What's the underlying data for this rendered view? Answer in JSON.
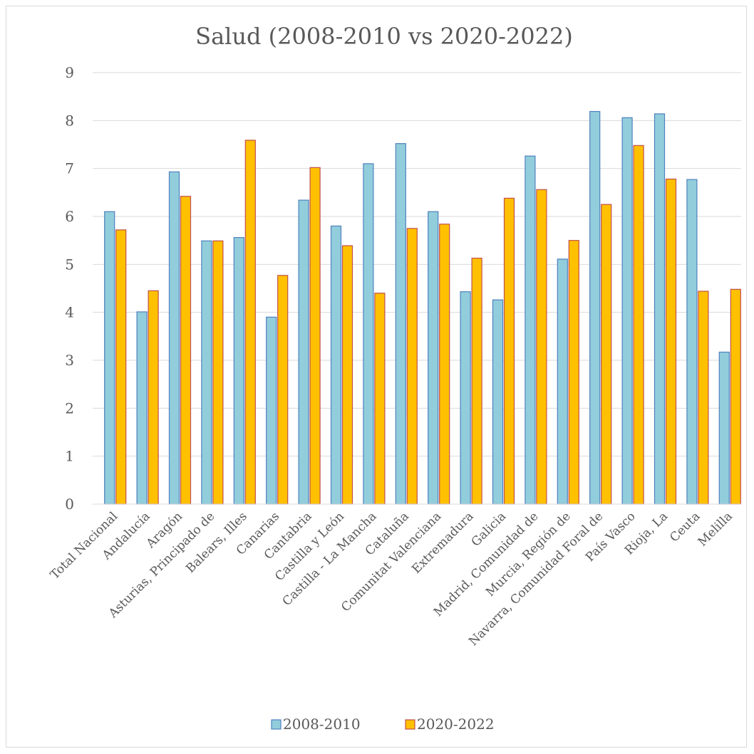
{
  "chart_data": {
    "type": "bar",
    "title": "Salud (2008-2010 vs 2020-2022)",
    "xlabel": "",
    "ylabel": "",
    "ylim": [
      0,
      9
    ],
    "yticks": [
      "0",
      "1",
      "2",
      "3",
      "4",
      "5",
      "6",
      "7",
      "8",
      "9"
    ],
    "grid": true,
    "legend_position": "bottom",
    "categories": [
      "Total Nacional",
      "Andalucía",
      "Aragón",
      "Asturias, Principado de",
      "Balears, Illes",
      "Canarias",
      "Cantabria",
      "Castilla y León",
      "Castilla - La Mancha",
      "Cataluña",
      "Comunitat Valenciana",
      "Extremadura",
      "Galicia",
      "Madrid, Comunidad de",
      "Murcia, Región de",
      "Navarra, Comunidad Foral de",
      "País Vasco",
      "Rioja, La",
      "Ceuta",
      "Melilla"
    ],
    "series": [
      {
        "name": "2008-2010",
        "color": "#92cddc",
        "stroke": "#4f81bd",
        "values": [
          6.1,
          4.01,
          6.93,
          5.49,
          5.56,
          3.9,
          6.34,
          5.8,
          7.1,
          7.52,
          6.1,
          4.43,
          4.26,
          7.26,
          5.11,
          8.19,
          8.06,
          8.14,
          6.77,
          3.17
        ]
      },
      {
        "name": "2020-2022",
        "color": "#ffc000",
        "stroke": "#c0504d",
        "values": [
          5.72,
          4.45,
          6.42,
          5.49,
          7.59,
          4.77,
          7.02,
          5.39,
          4.4,
          5.75,
          5.84,
          5.13,
          6.38,
          6.56,
          5.5,
          6.25,
          7.48,
          6.78,
          4.44,
          4.48
        ]
      }
    ]
  }
}
